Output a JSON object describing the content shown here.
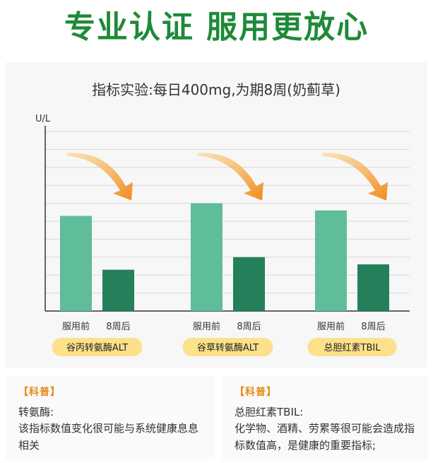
{
  "headline": "专业认证 服用更放心",
  "chart_data": {
    "type": "bar",
    "title": "指标实验:每日400mg,为期8周(奶蓟草)",
    "ylabel": "U/L",
    "ylim": [
      0,
      100
    ],
    "grid": true,
    "series_labels": [
      "服用前",
      "8周后"
    ],
    "groups": [
      {
        "name": "谷丙转氨酶ALT",
        "values": [
          53,
          23
        ]
      },
      {
        "name": "谷草转氨酶ALT",
        "values": [
          60,
          30
        ]
      },
      {
        "name": "总胆红素TBIL",
        "values": [
          56,
          26
        ]
      }
    ],
    "colors": {
      "before": "#5fbd99",
      "after": "#24805a",
      "arrow": "#f0962a",
      "badge": "#fbe18a"
    }
  },
  "notes": [
    {
      "tag": "【科普】",
      "title": "转氨酶:",
      "body": "该指标数值变化很可能与系统健康息息相关"
    },
    {
      "tag": "【科普】",
      "title": "总胆红素TBIL:",
      "body": "化学物、酒精、劳累等很可能会造成指标数值高，是健康的重要指标;"
    }
  ]
}
